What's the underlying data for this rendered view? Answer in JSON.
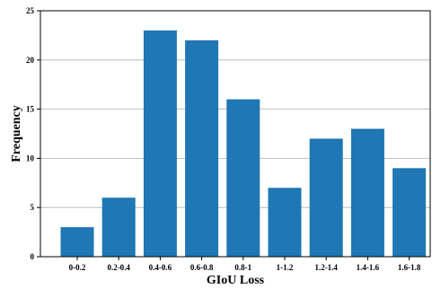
{
  "chart_data": {
    "type": "bar",
    "categories": [
      "0-0.2",
      "0.2-0.4",
      "0.4-0.6",
      "0.6-0.8",
      "0.8-1",
      "1-1.2",
      "1.2-1.4",
      "1.4-1.6",
      "1.6-1.8"
    ],
    "values": [
      3,
      6,
      23,
      22,
      16,
      7,
      12,
      13,
      9
    ],
    "title": "",
    "xlabel": "GIoU Loss",
    "ylabel": "Frequency",
    "ylim": [
      0,
      25
    ],
    "yticks": [
      0,
      5,
      10,
      15,
      20,
      25
    ],
    "grid": "horizontal",
    "bar_color": "#1f77b4"
  }
}
